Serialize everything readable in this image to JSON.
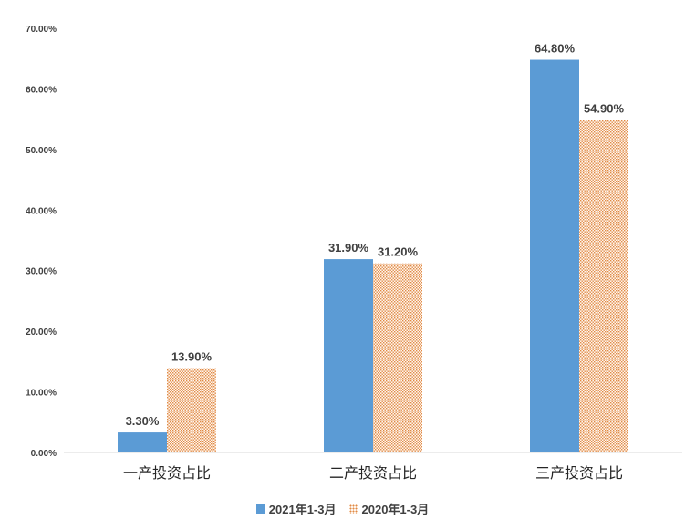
{
  "chart_data": {
    "type": "bar",
    "categories": [
      "一产投资占比",
      "二产投资占比",
      "三产投资占比"
    ],
    "series": [
      {
        "name": "2021年1-3月",
        "values": [
          3.3,
          31.9,
          64.8
        ],
        "labels": [
          "3.30%",
          "31.90%",
          "64.80%"
        ],
        "color": "#5b9bd5",
        "pattern": "solid"
      },
      {
        "name": "2020年1-3月",
        "values": [
          13.9,
          31.2,
          54.9
        ],
        "labels": [
          "13.90%",
          "31.20%",
          "54.90%"
        ],
        "color": "#ed7d31",
        "pattern": "dotted"
      }
    ],
    "ylim": [
      0,
      70
    ],
    "yticks": [
      "0.00%",
      "10.00%",
      "20.00%",
      "30.00%",
      "40.00%",
      "50.00%",
      "60.00%",
      "70.00%"
    ],
    "ytick_values": [
      0,
      10,
      20,
      30,
      40,
      50,
      60,
      70
    ],
    "grid": false,
    "legend_position": "bottom"
  }
}
